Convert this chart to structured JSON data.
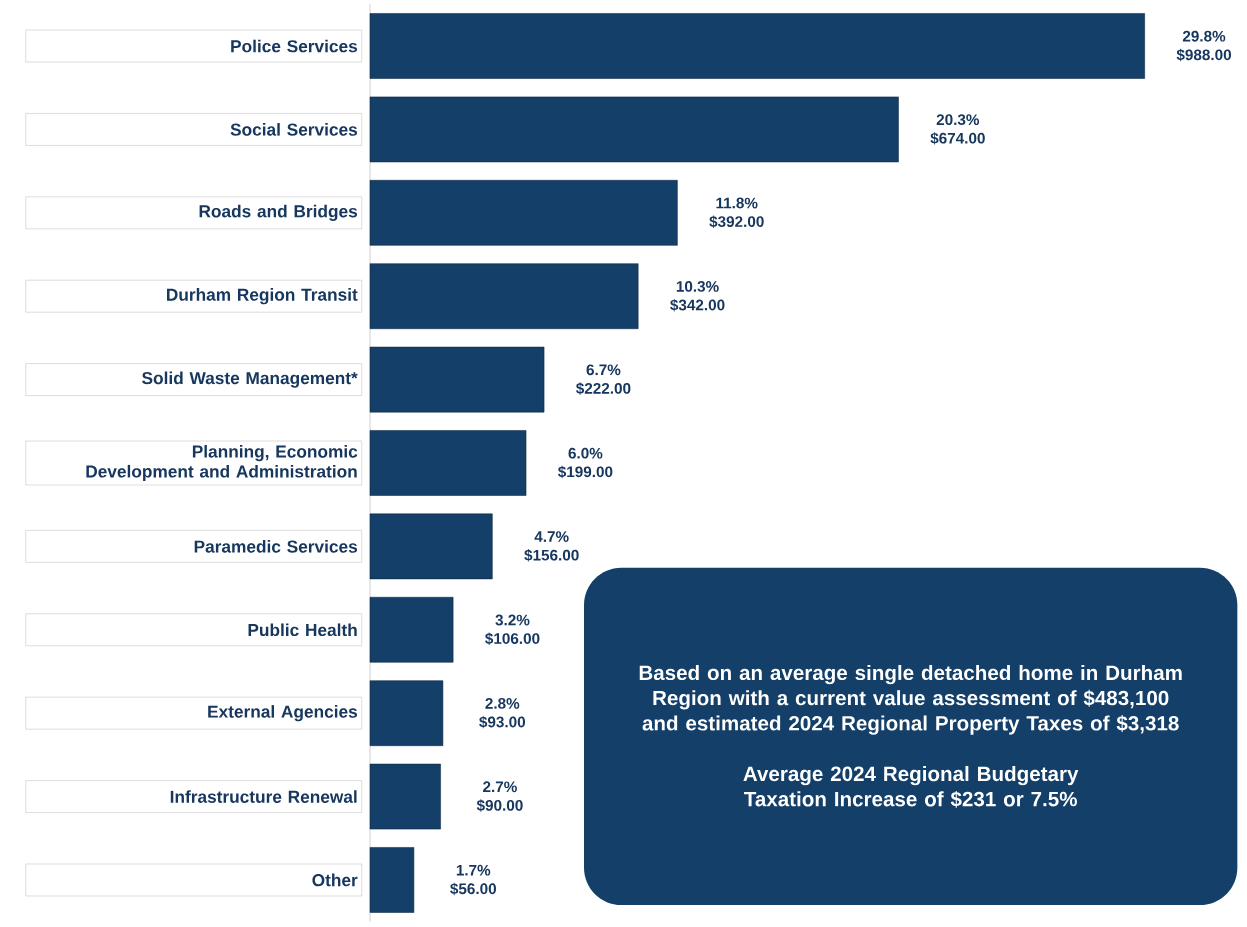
{
  "chart_data": {
    "type": "bar",
    "orientation": "horizontal",
    "categories": [
      "Police Services",
      "Social Services",
      "Roads and Bridges",
      "Durham Region Transit",
      "Solid Waste Management*",
      "Planning, Economic Development and Administration",
      "Paramedic Services",
      "Public Health",
      "External Agencies",
      "Infrastructure Renewal",
      "Other"
    ],
    "values": [
      988,
      674,
      392,
      342,
      222,
      199,
      156,
      106,
      93,
      90,
      56
    ],
    "value_labels": [
      "29.8% $988.00",
      "20.3% $674.00",
      "11.8% $392.00",
      "10.3% $342.00",
      "6.7% $222.00",
      "6.0% $199.00",
      "4.7% $156.00",
      "3.2% $106.00",
      "2.8% $93.00",
      "2.7% $90.00",
      "1.7% $56.00"
    ],
    "color": "#143f68",
    "annotations": [
      "Based on an average single detached home in Durham Region with a current value assessment of $483,100 and estimated 2024 Regional Property Taxes of $3,318",
      "Average 2024 Regional Budgetary Taxation Increase of $231 or 7.5%"
    ]
  }
}
